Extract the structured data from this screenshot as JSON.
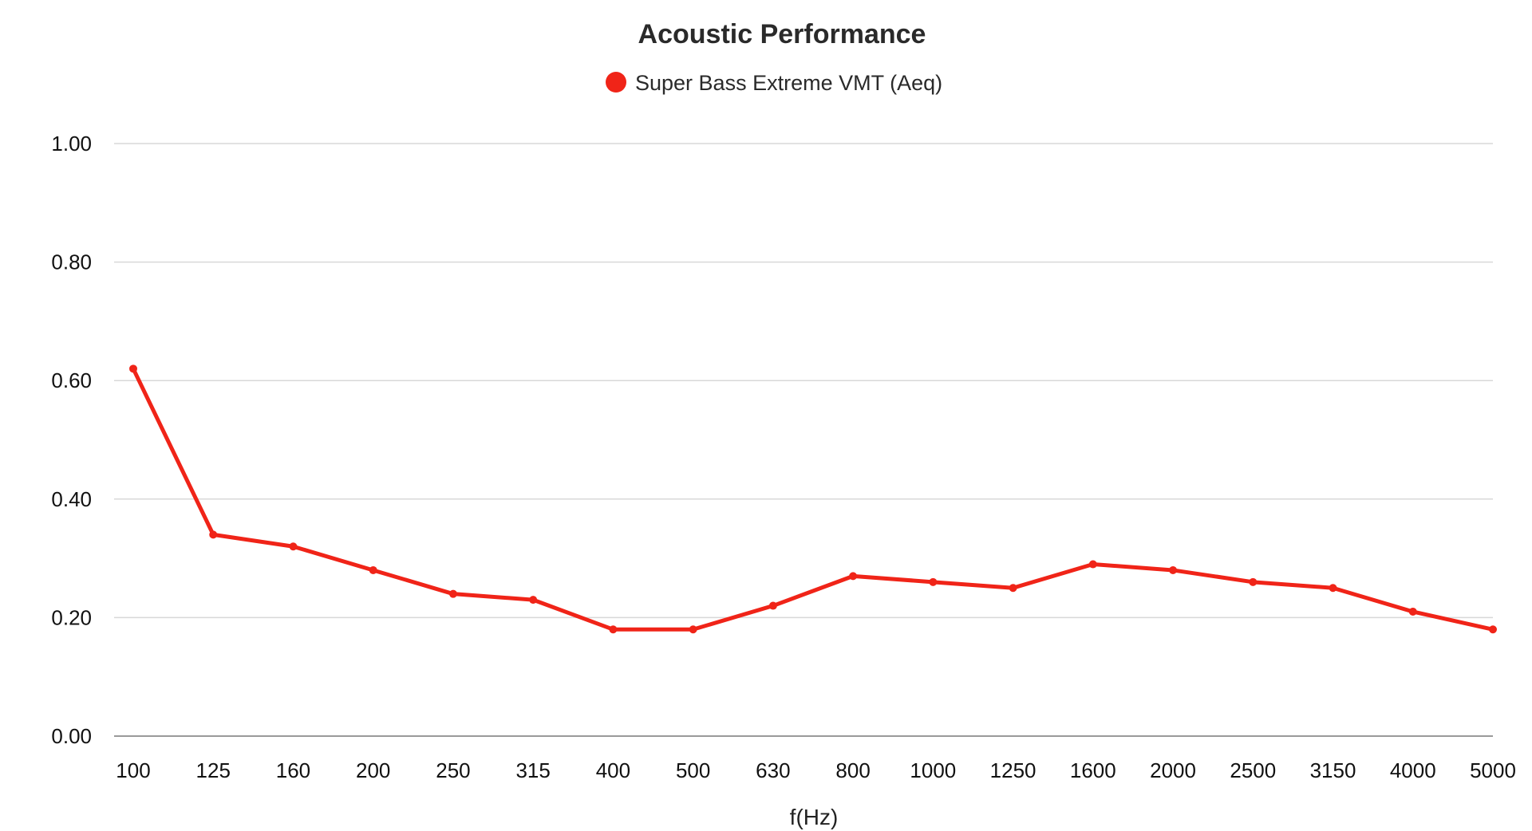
{
  "chart_data": {
    "type": "line",
    "title": "Acoustic Performance",
    "xlabel": "f(Hz)",
    "ylabel": "",
    "categories": [
      "100",
      "125",
      "160",
      "200",
      "250",
      "315",
      "400",
      "500",
      "630",
      "800",
      "1000",
      "1250",
      "1600",
      "2000",
      "2500",
      "3150",
      "4000",
      "5000"
    ],
    "series": [
      {
        "name": "Super Bass Extreme VMT (Aeq)",
        "color": "#f02418",
        "values": [
          0.62,
          0.34,
          0.32,
          0.28,
          0.24,
          0.23,
          0.18,
          0.18,
          0.22,
          0.27,
          0.26,
          0.25,
          0.29,
          0.28,
          0.26,
          0.25,
          0.21,
          0.18
        ]
      }
    ],
    "ylim": [
      0,
      1
    ],
    "yticks": [
      "0.00",
      "0.20",
      "0.40",
      "0.60",
      "0.80",
      "1.00"
    ],
    "grid": true,
    "legend": "top-center"
  }
}
